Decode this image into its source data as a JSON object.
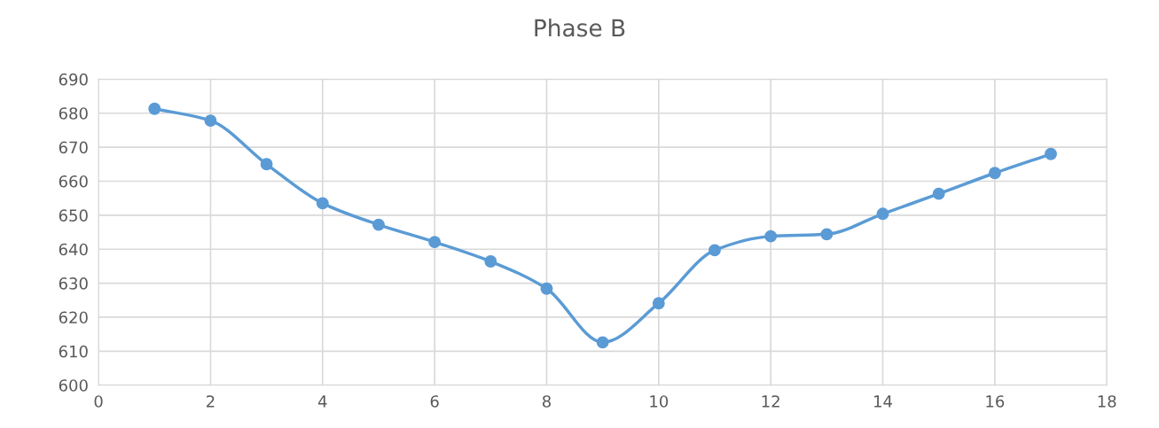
{
  "chart_data": {
    "type": "line",
    "title": "Phase B",
    "x": [
      1,
      2,
      3,
      4,
      5,
      6,
      7,
      8,
      9,
      10,
      11,
      12,
      13,
      14,
      15,
      16,
      17
    ],
    "series": [
      {
        "color": "#5b9bd5",
        "values": [
          681.3,
          677.8,
          665.0,
          653.5,
          647.2,
          642.1,
          636.4,
          628.4,
          612.6,
          624.1,
          639.7,
          643.8,
          644.4,
          650.4,
          656.3,
          662.4,
          668.0
        ]
      }
    ],
    "xlim": [
      0,
      18
    ],
    "xticks": [
      0,
      2,
      4,
      6,
      8,
      10,
      12,
      14,
      16,
      18
    ],
    "ylim": [
      600,
      690
    ],
    "yticks": [
      600,
      610,
      620,
      630,
      640,
      650,
      660,
      670,
      680,
      690
    ],
    "grid": true,
    "marker": "circle",
    "line_style": "solid",
    "legend": false
  }
}
